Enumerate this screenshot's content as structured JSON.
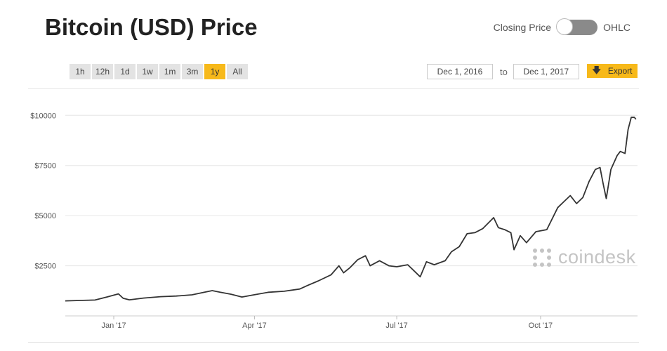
{
  "header": {
    "title": "Bitcoin (USD) Price",
    "toggle_left": "Closing Price",
    "toggle_right": "OHLC"
  },
  "ranges": [
    {
      "label": "1h",
      "active": false
    },
    {
      "label": "12h",
      "active": false
    },
    {
      "label": "1d",
      "active": false
    },
    {
      "label": "1w",
      "active": false
    },
    {
      "label": "1m",
      "active": false
    },
    {
      "label": "3m",
      "active": false
    },
    {
      "label": "1y",
      "active": true
    },
    {
      "label": "All",
      "active": false
    }
  ],
  "dates": {
    "from": "Dec 1, 2016",
    "to_label": "to",
    "to": "Dec 1, 2017"
  },
  "export_label": "Export",
  "watermark": "coindesk",
  "colors": {
    "accent": "#f7b91a",
    "line": "#333333",
    "grid": "#e6e6e6"
  },
  "chart_data": {
    "type": "line",
    "title": "Bitcoin (USD) Price",
    "xlabel": "",
    "ylabel": "",
    "yticks": [
      2500,
      5000,
      7500,
      10000
    ],
    "ytick_labels": [
      "$2500",
      "$5000",
      "$7500",
      "$10000"
    ],
    "xticks": [
      {
        "date": "2017-01-01",
        "label": "Jan '17"
      },
      {
        "date": "2017-04-01",
        "label": "Apr '17"
      },
      {
        "date": "2017-07-01",
        "label": "Jul '17"
      },
      {
        "date": "2017-10-01",
        "label": "Oct '17"
      }
    ],
    "xlim": [
      "2016-12-01",
      "2017-12-02"
    ],
    "ylim": [
      0,
      10500
    ],
    "grid": true,
    "series": [
      {
        "points": [
          [
            "2016-12-01",
            750
          ],
          [
            "2016-12-10",
            770
          ],
          [
            "2016-12-20",
            790
          ],
          [
            "2016-12-28",
            950
          ],
          [
            "2017-01-04",
            1100
          ],
          [
            "2017-01-07",
            880
          ],
          [
            "2017-01-11",
            800
          ],
          [
            "2017-01-20",
            890
          ],
          [
            "2017-01-31",
            960
          ],
          [
            "2017-02-10",
            990
          ],
          [
            "2017-02-20",
            1050
          ],
          [
            "2017-02-28",
            1180
          ],
          [
            "2017-03-05",
            1260
          ],
          [
            "2017-03-10",
            1180
          ],
          [
            "2017-03-17",
            1080
          ],
          [
            "2017-03-24",
            940
          ],
          [
            "2017-03-31",
            1040
          ],
          [
            "2017-04-10",
            1180
          ],
          [
            "2017-04-20",
            1230
          ],
          [
            "2017-04-30",
            1340
          ],
          [
            "2017-05-05",
            1520
          ],
          [
            "2017-05-12",
            1750
          ],
          [
            "2017-05-20",
            2050
          ],
          [
            "2017-05-25",
            2500
          ],
          [
            "2017-05-28",
            2150
          ],
          [
            "2017-06-01",
            2400
          ],
          [
            "2017-06-06",
            2800
          ],
          [
            "2017-06-11",
            3000
          ],
          [
            "2017-06-14",
            2500
          ],
          [
            "2017-06-20",
            2750
          ],
          [
            "2017-06-26",
            2500
          ],
          [
            "2017-07-01",
            2450
          ],
          [
            "2017-07-08",
            2550
          ],
          [
            "2017-07-16",
            1950
          ],
          [
            "2017-07-20",
            2700
          ],
          [
            "2017-07-25",
            2550
          ],
          [
            "2017-08-01",
            2750
          ],
          [
            "2017-08-05",
            3200
          ],
          [
            "2017-08-10",
            3450
          ],
          [
            "2017-08-15",
            4100
          ],
          [
            "2017-08-20",
            4150
          ],
          [
            "2017-08-25",
            4350
          ],
          [
            "2017-09-01",
            4900
          ],
          [
            "2017-09-04",
            4400
          ],
          [
            "2017-09-08",
            4300
          ],
          [
            "2017-09-12",
            4150
          ],
          [
            "2017-09-14",
            3300
          ],
          [
            "2017-09-18",
            4000
          ],
          [
            "2017-09-22",
            3650
          ],
          [
            "2017-09-28",
            4200
          ],
          [
            "2017-10-05",
            4300
          ],
          [
            "2017-10-12",
            5400
          ],
          [
            "2017-10-16",
            5700
          ],
          [
            "2017-10-20",
            6000
          ],
          [
            "2017-10-24",
            5600
          ],
          [
            "2017-10-28",
            5900
          ],
          [
            "2017-11-01",
            6700
          ],
          [
            "2017-11-05",
            7300
          ],
          [
            "2017-11-08",
            7400
          ],
          [
            "2017-11-10",
            6600
          ],
          [
            "2017-11-12",
            5850
          ],
          [
            "2017-11-15",
            7300
          ],
          [
            "2017-11-19",
            8000
          ],
          [
            "2017-11-21",
            8200
          ],
          [
            "2017-11-24",
            8100
          ],
          [
            "2017-11-26",
            9300
          ],
          [
            "2017-11-28",
            9900
          ],
          [
            "2017-11-30",
            9900
          ],
          [
            "2017-12-01",
            9800
          ]
        ]
      }
    ]
  }
}
